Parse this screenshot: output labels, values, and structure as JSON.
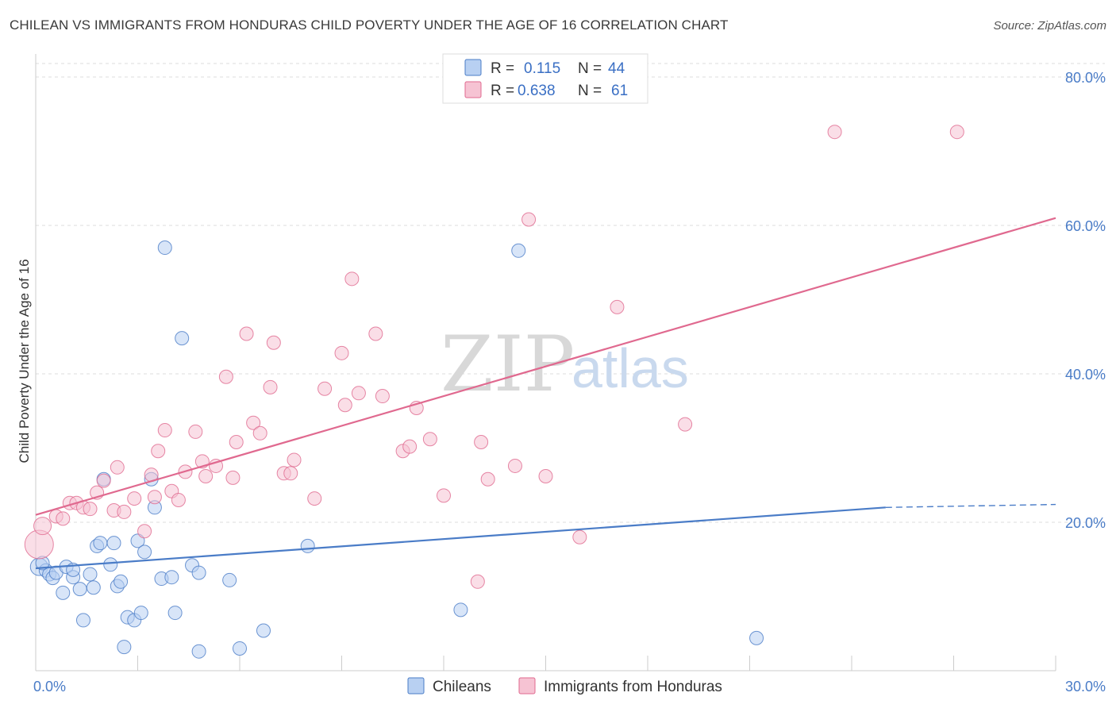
{
  "title": "CHILEAN VS IMMIGRANTS FROM HONDURAS CHILD POVERTY UNDER THE AGE OF 16 CORRELATION CHART",
  "source": "Source: ZipAtlas.com",
  "watermark": {
    "zip": "ZIP",
    "atlas": "atlas"
  },
  "colors": {
    "chileans": "#4a7cc7",
    "chileans_fill": "#b8d0f2",
    "honduras": "#e0698f",
    "honduras_fill": "#f6c3d3",
    "grid": "#dddddd",
    "axis_label": "#4a7cc7"
  },
  "legend_top": {
    "rows": [
      {
        "r_label": "R =",
        "r_value": "0.115",
        "n_label": "N =",
        "n_value": "44"
      },
      {
        "r_label": "R =",
        "r_value": "0.638",
        "n_label": "N =",
        "n_value": "61"
      }
    ]
  },
  "chart_data": {
    "type": "scatter",
    "xlabel": "",
    "ylabel": "Child Poverty Under the Age of 16",
    "xlim": [
      0,
      30
    ],
    "ylim": [
      0,
      80
    ],
    "x_tick_labels": [
      "0.0%",
      "30.0%"
    ],
    "y_tick_labels": [
      "20.0%",
      "40.0%",
      "60.0%",
      "80.0%"
    ],
    "y_ticks": [
      20,
      40,
      60,
      80
    ],
    "grid": true,
    "legend_placement": "bottom-center",
    "series": [
      {
        "name": "Chileans",
        "trend": {
          "x": [
            0,
            25
          ],
          "y": [
            13.8,
            22.0
          ],
          "dashed_to": [
            30,
            22.4
          ]
        },
        "points": [
          [
            0.1,
            14
          ],
          [
            0.3,
            13.5
          ],
          [
            0.4,
            13
          ],
          [
            0.5,
            12.5
          ],
          [
            0.6,
            13.2
          ],
          [
            0.8,
            10.5
          ],
          [
            0.9,
            14
          ],
          [
            1.1,
            12.6
          ],
          [
            1.1,
            13.6
          ],
          [
            1.3,
            11
          ],
          [
            1.4,
            6.8
          ],
          [
            1.6,
            13
          ],
          [
            1.7,
            11.2
          ],
          [
            1.8,
            16.8
          ],
          [
            1.9,
            17.2
          ],
          [
            2.0,
            25.8
          ],
          [
            2.2,
            14.3
          ],
          [
            2.3,
            17.2
          ],
          [
            2.4,
            11.4
          ],
          [
            2.5,
            12
          ],
          [
            2.6,
            3.2
          ],
          [
            2.7,
            7.2
          ],
          [
            2.9,
            6.8
          ],
          [
            3.0,
            17.5
          ],
          [
            3.1,
            7.8
          ],
          [
            3.2,
            16
          ],
          [
            3.4,
            25.8
          ],
          [
            3.5,
            22
          ],
          [
            3.7,
            12.4
          ],
          [
            3.8,
            57
          ],
          [
            4.0,
            12.6
          ],
          [
            4.1,
            7.8
          ],
          [
            4.3,
            44.8
          ],
          [
            4.6,
            14.2
          ],
          [
            4.8,
            2.6
          ],
          [
            4.8,
            13.2
          ],
          [
            5.7,
            12.2
          ],
          [
            6.0,
            3.0
          ],
          [
            6.7,
            5.4
          ],
          [
            8.0,
            16.8
          ],
          [
            12.5,
            8.2
          ],
          [
            14.2,
            56.6
          ],
          [
            21.2,
            4.4
          ],
          [
            0.2,
            14.5
          ]
        ]
      },
      {
        "name": "Immigrants from Honduras",
        "trend": {
          "x": [
            0,
            30
          ],
          "y": [
            21,
            61
          ]
        },
        "points": [
          [
            0.1,
            17
          ],
          [
            0.2,
            19.5
          ],
          [
            0.6,
            20.8
          ],
          [
            0.8,
            20.5
          ],
          [
            1.0,
            22.6
          ],
          [
            1.2,
            22.6
          ],
          [
            1.4,
            22
          ],
          [
            1.6,
            21.8
          ],
          [
            1.8,
            24
          ],
          [
            2.0,
            25.6
          ],
          [
            2.3,
            21.6
          ],
          [
            2.4,
            27.4
          ],
          [
            2.6,
            21.4
          ],
          [
            2.9,
            23.2
          ],
          [
            3.2,
            18.8
          ],
          [
            3.4,
            26.4
          ],
          [
            3.5,
            23.4
          ],
          [
            3.6,
            29.6
          ],
          [
            3.8,
            32.4
          ],
          [
            4.0,
            24.2
          ],
          [
            4.2,
            23
          ],
          [
            4.4,
            26.8
          ],
          [
            4.7,
            32.2
          ],
          [
            4.9,
            28.2
          ],
          [
            5.0,
            26.2
          ],
          [
            5.3,
            27.6
          ],
          [
            5.6,
            39.6
          ],
          [
            5.8,
            26
          ],
          [
            5.9,
            30.8
          ],
          [
            6.2,
            45.4
          ],
          [
            6.4,
            33.4
          ],
          [
            6.6,
            32
          ],
          [
            6.9,
            38.2
          ],
          [
            7.0,
            44.2
          ],
          [
            7.3,
            26.6
          ],
          [
            7.5,
            26.6
          ],
          [
            7.6,
            28.4
          ],
          [
            8.2,
            23.2
          ],
          [
            8.5,
            38
          ],
          [
            9.0,
            42.8
          ],
          [
            9.1,
            35.8
          ],
          [
            9.3,
            52.8
          ],
          [
            9.5,
            37.4
          ],
          [
            10.0,
            45.4
          ],
          [
            10.2,
            37
          ],
          [
            10.8,
            29.6
          ],
          [
            11.0,
            30.2
          ],
          [
            11.2,
            35.4
          ],
          [
            11.6,
            31.2
          ],
          [
            12.0,
            23.6
          ],
          [
            13.0,
            12
          ],
          [
            13.1,
            30.8
          ],
          [
            13.3,
            25.8
          ],
          [
            14.1,
            27.6
          ],
          [
            14.5,
            60.8
          ],
          [
            15.0,
            26.2
          ],
          [
            16.0,
            18
          ],
          [
            17.1,
            49
          ],
          [
            19.1,
            33.2
          ],
          [
            23.5,
            72.6
          ],
          [
            27.1,
            72.6
          ]
        ]
      }
    ]
  },
  "legend_bottom": [
    "Chileans",
    "Immigrants from Honduras"
  ]
}
